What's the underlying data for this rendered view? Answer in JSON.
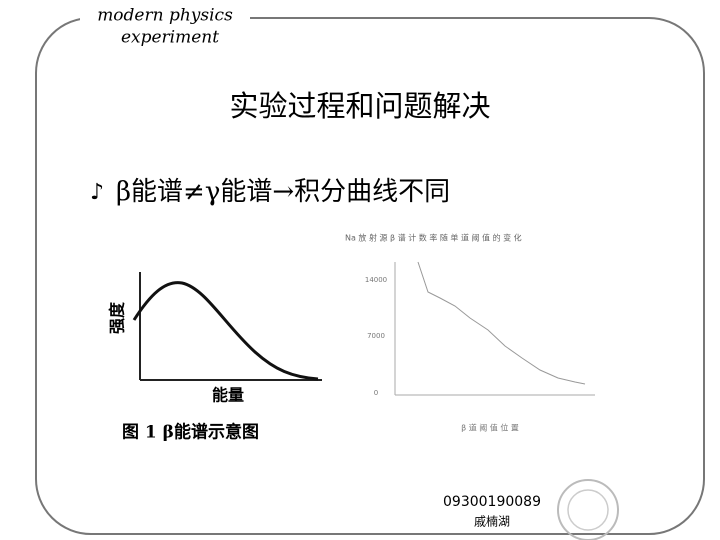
{
  "header": {
    "line1": "modern physics",
    "line2": "experiment"
  },
  "title": "实验过程和问题解决",
  "bullet": {
    "marker": "♪",
    "text": "β能谱≠γ能谱→积分曲线不同"
  },
  "figure_left": {
    "y_label": "强度",
    "x_label": "能量",
    "caption": "图 1   β能谱示意图"
  },
  "figure_right": {
    "title": "Na 放 射 源 β 谱 计 数 率 随 单 道 阈 值 的 变 化",
    "yticks": [
      "14000",
      "7000",
      "0"
    ],
    "x_label": "β 道 阈 值 位 置"
  },
  "footer": {
    "id": "09300190089",
    "name": "戚楠湖"
  }
}
